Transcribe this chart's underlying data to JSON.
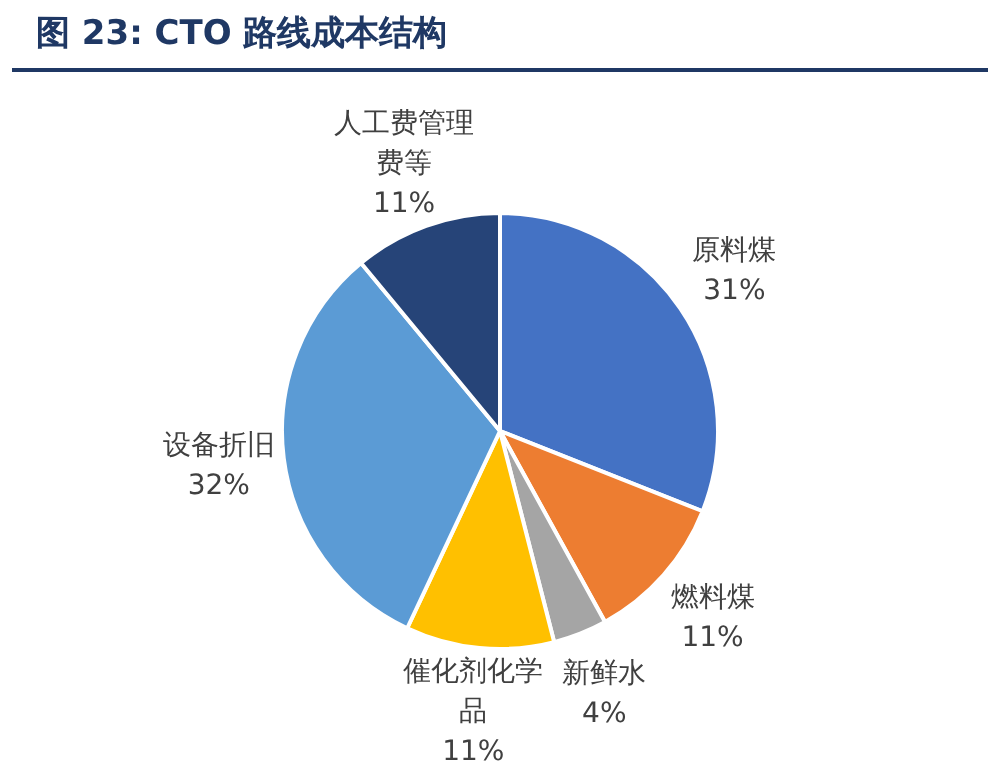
{
  "chart_data": {
    "type": "pie",
    "title": "图 23: CTO 路线成本结构",
    "categories": [
      "原料煤",
      "燃料煤",
      "新鲜水",
      "催化剂化学品",
      "设备折旧",
      "人工费管理费等"
    ],
    "values": [
      31,
      11,
      4,
      11,
      32,
      11
    ],
    "value_labels": [
      "31%",
      "11%",
      "4%",
      "11%",
      "32%",
      "11%"
    ],
    "colors": [
      "#4472c4",
      "#ed7d31",
      "#a5a5a5",
      "#ffc000",
      "#5b9bd5",
      "#264478"
    ],
    "legend": false
  }
}
